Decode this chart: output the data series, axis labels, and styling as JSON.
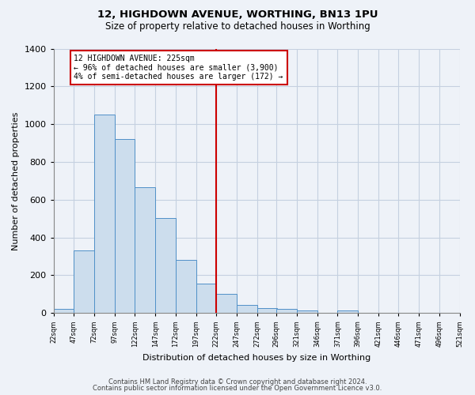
{
  "title1": "12, HIGHDOWN AVENUE, WORTHING, BN13 1PU",
  "title2": "Size of property relative to detached houses in Worthing",
  "xlabel": "Distribution of detached houses by size in Worthing",
  "ylabel": "Number of detached properties",
  "footer1": "Contains HM Land Registry data © Crown copyright and database right 2024.",
  "footer2": "Contains public sector information licensed under the Open Government Licence v3.0.",
  "bin_edges": [
    22,
    47,
    72,
    97,
    122,
    147,
    172,
    197,
    222,
    247,
    272,
    296,
    321,
    346,
    371,
    396,
    421,
    446,
    471,
    496,
    521
  ],
  "bar_heights": [
    20,
    330,
    1050,
    920,
    665,
    505,
    280,
    155,
    100,
    45,
    25,
    22,
    15,
    0,
    12,
    0,
    0,
    0,
    0,
    0
  ],
  "bar_color": "#ccdded",
  "bar_edge_color": "#5090c8",
  "grid_color": "#c5d0e0",
  "bg_color": "#eef2f8",
  "vline_x": 222,
  "vline_color": "#cc0000",
  "annotation_text": "12 HIGHDOWN AVENUE: 225sqm\n← 96% of detached houses are smaller (3,900)\n4% of semi-detached houses are larger (172) →",
  "annotation_box_color": "#ffffff",
  "annotation_edge_color": "#cc0000",
  "ylim": [
    0,
    1400
  ],
  "yticks": [
    0,
    200,
    400,
    600,
    800,
    1000,
    1200,
    1400
  ],
  "xtick_labels": [
    "22sqm",
    "47sqm",
    "72sqm",
    "97sqm",
    "122sqm",
    "147sqm",
    "172sqm",
    "197sqm",
    "222sqm",
    "247sqm",
    "272sqm",
    "296sqm",
    "321sqm",
    "346sqm",
    "371sqm",
    "396sqm",
    "421sqm",
    "446sqm",
    "471sqm",
    "496sqm",
    "521sqm"
  ]
}
